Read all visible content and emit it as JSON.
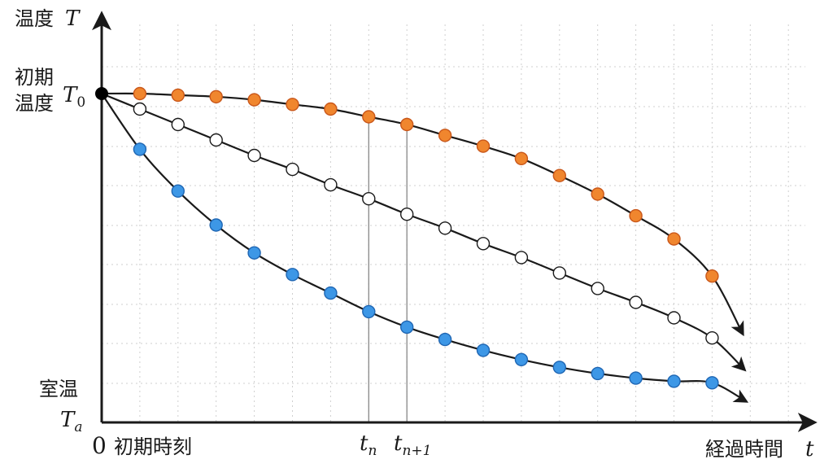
{
  "labels": {
    "y_axis_word": "温度",
    "y_axis_symbol": "T",
    "x_axis_word": "経過時間",
    "x_axis_symbol": "t",
    "initial_temp_line1": "初期",
    "initial_temp_line2": "温度",
    "t0_symbol": "T",
    "t0_sub": "0",
    "room_temp_word": "室温",
    "ta_symbol": "T",
    "ta_sub": "a",
    "origin": "0",
    "initial_time": "初期時刻",
    "tn_symbol": "t",
    "tn_sub": "n",
    "tn1_symbol": "t",
    "tn1_sub": "n+1"
  },
  "colors": {
    "axis": "#1a1a1a",
    "curve": "#1a1a1a",
    "grid": "#cfcfcf",
    "orange_fill": "#f0862e",
    "orange_stroke": "#c9571a",
    "white_fill": "#ffffff",
    "white_stroke": "#1a1a1a",
    "blue_fill": "#3d97e6",
    "blue_stroke": "#1f66b3",
    "guide": "#888888"
  },
  "chart_data": {
    "type": "line",
    "title": "",
    "xlabel": "経過時間 t",
    "ylabel": "温度 T",
    "xlim": [
      0,
      17
    ],
    "ylim": [
      0,
      1
    ],
    "x": [
      1,
      2,
      3,
      4,
      5,
      6,
      7,
      8,
      9,
      10,
      11,
      12,
      13,
      14,
      15,
      16
    ],
    "series": [
      {
        "color": "orange",
        "values": [
          1.0,
          0.995,
          0.99,
          0.98,
          0.965,
          0.95,
          0.925,
          0.9,
          0.865,
          0.83,
          0.79,
          0.735,
          0.675,
          0.605,
          0.53,
          0.41
        ]
      },
      {
        "color": "white",
        "values": [
          0.95,
          0.9,
          0.85,
          0.8,
          0.755,
          0.705,
          0.66,
          0.61,
          0.565,
          0.515,
          0.47,
          0.42,
          0.37,
          0.325,
          0.275,
          0.21
        ]
      },
      {
        "color": "blue",
        "values": [
          0.82,
          0.685,
          0.575,
          0.485,
          0.415,
          0.355,
          0.295,
          0.245,
          0.205,
          0.17,
          0.14,
          0.115,
          0.095,
          0.08,
          0.07,
          0.065
        ]
      }
    ],
    "highlighted_x": [
      7,
      8
    ],
    "y_references": [
      "T0",
      "Ta"
    ]
  }
}
